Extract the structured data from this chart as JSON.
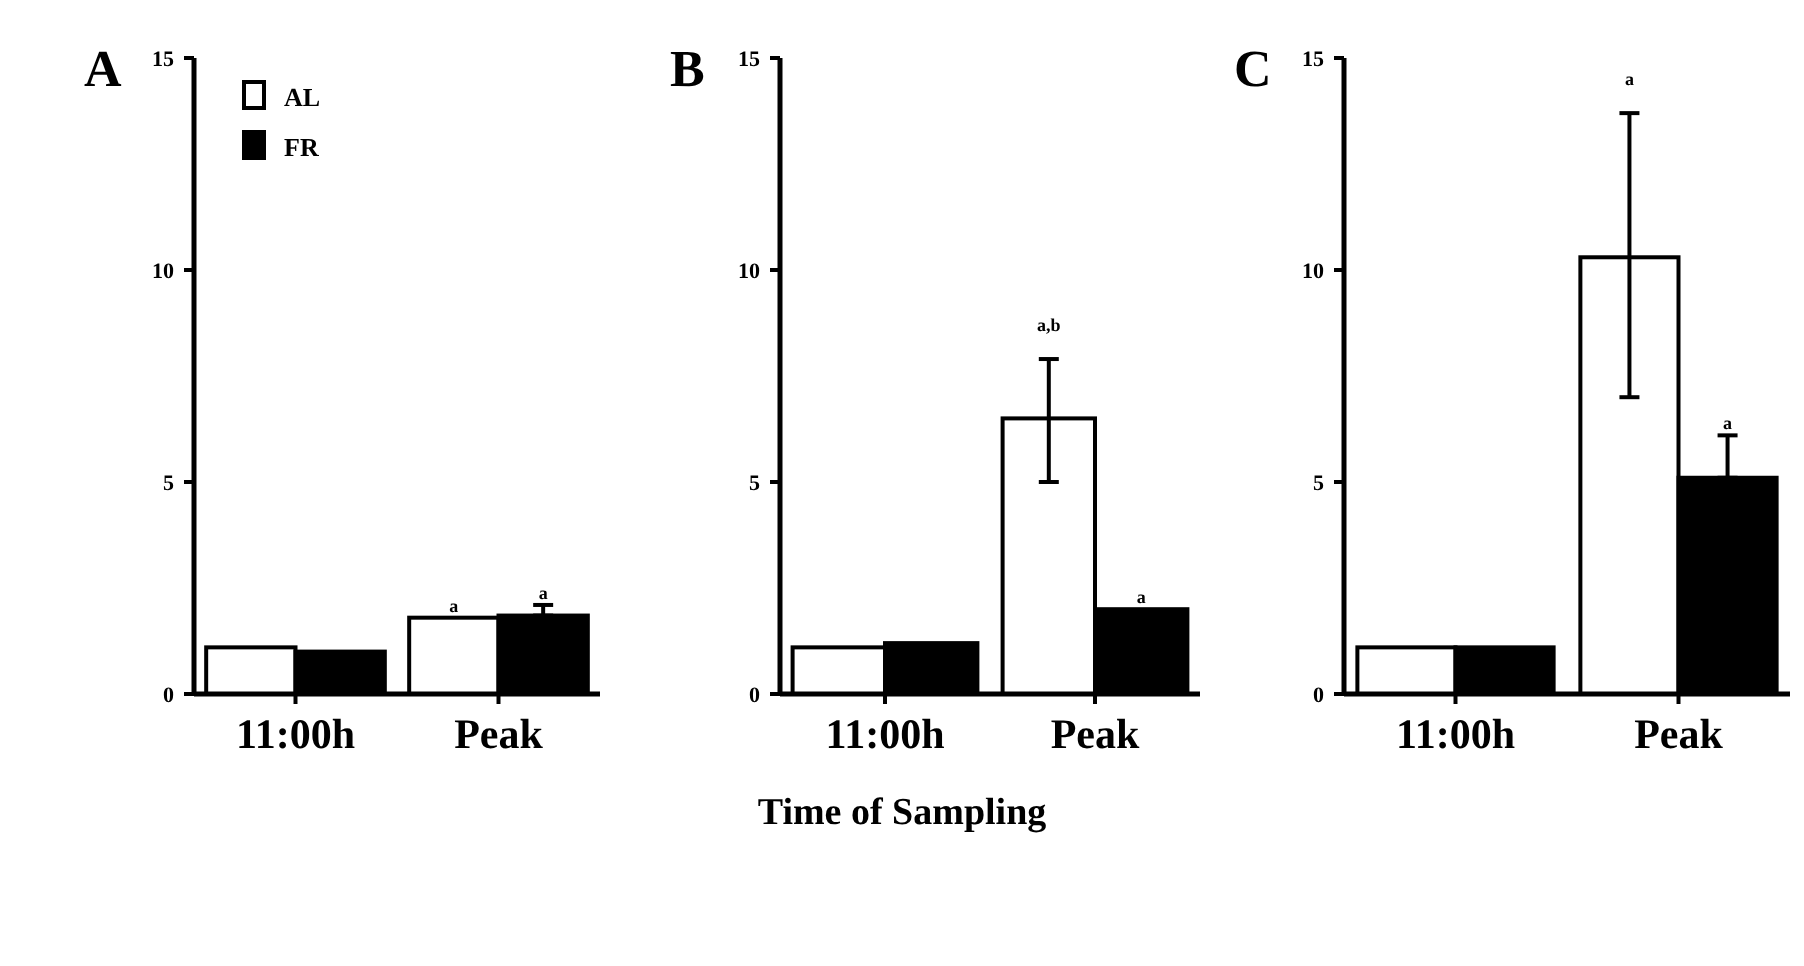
{
  "chart_data": [
    {
      "type": "bar",
      "title": "A",
      "categories": [
        "11:00h",
        "Peak"
      ],
      "ylim": [
        0,
        15
      ],
      "yticks": [
        0,
        5,
        10,
        15
      ],
      "legend": "top left",
      "series": [
        {
          "name": "AL",
          "color": "#ffffff",
          "values": [
            1.1,
            1.8
          ],
          "value_labels": [
            null,
            "a"
          ]
        },
        {
          "name": "FR",
          "color": "#000000",
          "values": [
            1.0,
            1.85
          ],
          "errors": [
            null,
            [
              1.85,
              2.1
            ]
          ],
          "value_labels": [
            null,
            "a"
          ]
        }
      ]
    },
    {
      "type": "bar",
      "title": "B",
      "categories": [
        "11:00h",
        "Peak"
      ],
      "ylim": [
        0,
        15
      ],
      "yticks": [
        0,
        5,
        10,
        15
      ],
      "xlabel": "Time of Sampling",
      "series": [
        {
          "color": "#ffffff",
          "values": [
            1.1,
            6.5
          ],
          "errors": [
            null,
            [
              5.0,
              7.9
            ]
          ]
        },
        {
          "color": "#000000",
          "values": [
            1.2,
            2.0
          ],
          "value_labels": [
            null,
            "a"
          ]
        }
      ],
      "annotations": [
        "a,b"
      ]
    },
    {
      "type": "bar",
      "title": "C",
      "categories": [
        "11:00h",
        "Peak"
      ],
      "ylim": [
        0,
        15
      ],
      "yticks": [
        0,
        5,
        10,
        15
      ],
      "series": [
        {
          "color": "#ffffff",
          "values": [
            1.1,
            10.3
          ],
          "errors": [
            null,
            [
              7.0,
              13.7
            ]
          ]
        },
        {
          "color": "#000000",
          "values": [
            1.1,
            5.1
          ],
          "errors": [
            null,
            [
              5.1,
              6.1
            ]
          ],
          "value_labels": [
            null,
            "a"
          ]
        }
      ],
      "annotations": [
        "a"
      ]
    }
  ]
}
